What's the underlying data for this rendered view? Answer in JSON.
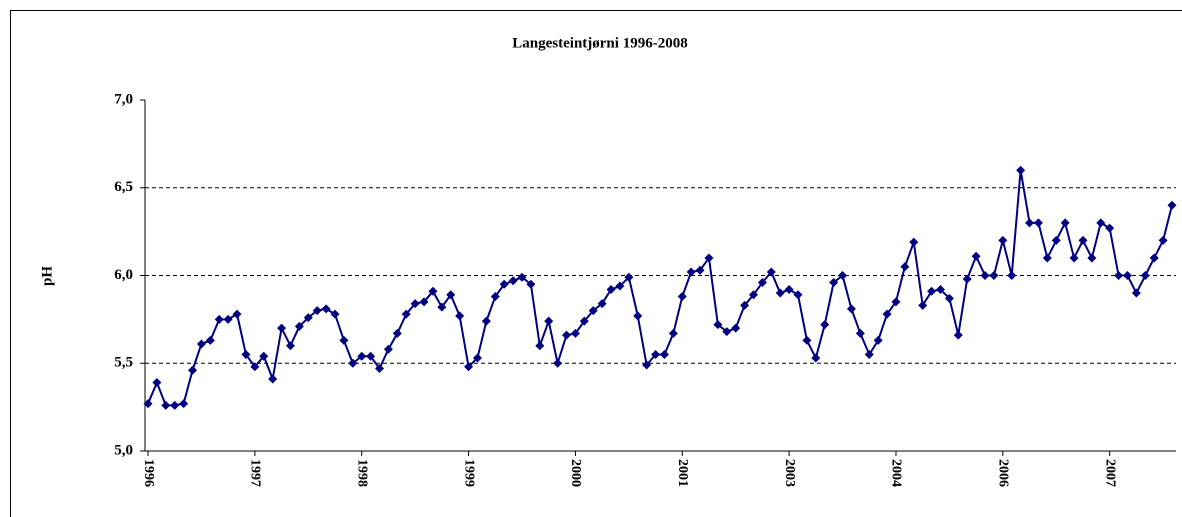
{
  "chart_data": {
    "type": "line",
    "title": "Langesteintjørni 1996-2008",
    "y_label": "pH",
    "categories": [
      "1996",
      null,
      null,
      null,
      null,
      null,
      null,
      null,
      null,
      null,
      null,
      null,
      "1997",
      null,
      null,
      null,
      null,
      null,
      null,
      null,
      null,
      null,
      null,
      null,
      "1998",
      null,
      null,
      null,
      null,
      null,
      null,
      null,
      null,
      null,
      null,
      null,
      "1999",
      null,
      null,
      null,
      null,
      null,
      null,
      null,
      null,
      null,
      null,
      null,
      "2000",
      null,
      null,
      null,
      null,
      null,
      null,
      null,
      null,
      null,
      null,
      null,
      "2001",
      null,
      null,
      null,
      null,
      null,
      null,
      null,
      null,
      null,
      null,
      null,
      "2003",
      null,
      null,
      null,
      null,
      null,
      null,
      null,
      null,
      null,
      null,
      null,
      "2004",
      null,
      null,
      null,
      null,
      null,
      null,
      null,
      null,
      null,
      null,
      null,
      "2006",
      null,
      null,
      null,
      null,
      null,
      null,
      null,
      null,
      null,
      null,
      null,
      "2007",
      null,
      null,
      null,
      null,
      null,
      null,
      null
    ],
    "series": [
      {
        "name": "pH",
        "color": "#000080",
        "values": [
          5.27,
          5.39,
          5.26,
          5.26,
          5.27,
          5.46,
          5.61,
          5.63,
          5.75,
          5.75,
          5.78,
          5.55,
          5.48,
          5.54,
          5.41,
          5.7,
          5.6,
          5.71,
          5.76,
          5.8,
          5.81,
          5.78,
          5.63,
          5.5,
          5.54,
          5.54,
          5.47,
          5.58,
          5.67,
          5.78,
          5.84,
          5.85,
          5.91,
          5.82,
          5.89,
          5.77,
          5.48,
          5.53,
          5.74,
          5.88,
          5.95,
          5.97,
          5.99,
          5.95,
          5.6,
          5.74,
          5.5,
          5.66,
          5.67,
          5.74,
          5.8,
          5.84,
          5.92,
          5.94,
          5.99,
          5.77,
          5.49,
          5.55,
          5.55,
          5.67,
          5.88,
          6.02,
          6.03,
          6.1,
          5.72,
          5.68,
          5.7,
          5.83,
          5.89,
          5.96,
          6.02,
          5.9,
          5.92,
          5.89,
          5.63,
          5.53,
          5.72,
          5.96,
          6.0,
          5.81,
          5.67,
          5.55,
          5.63,
          5.78,
          5.85,
          6.05,
          6.19,
          5.83,
          5.91,
          5.92,
          5.87,
          5.66,
          5.98,
          6.11,
          6.0,
          6.0,
          6.2,
          6.0,
          6.6,
          6.3,
          6.3,
          6.1,
          6.2,
          6.3,
          6.1,
          6.2,
          6.1,
          6.3,
          6.27,
          6.0,
          6.0,
          5.9,
          6.0,
          6.1,
          6.2,
          6.4
        ]
      }
    ],
    "ylim": [
      5,
      7
    ],
    "yticks": [
      {
        "value": 5,
        "label": "5,0"
      },
      {
        "value": 5.5,
        "label": "5,5"
      },
      {
        "value": 6,
        "label": "6,0"
      },
      {
        "value": 6.5,
        "label": "6,5"
      },
      {
        "value": 7,
        "label": "7,0"
      }
    ],
    "grid": true
  }
}
